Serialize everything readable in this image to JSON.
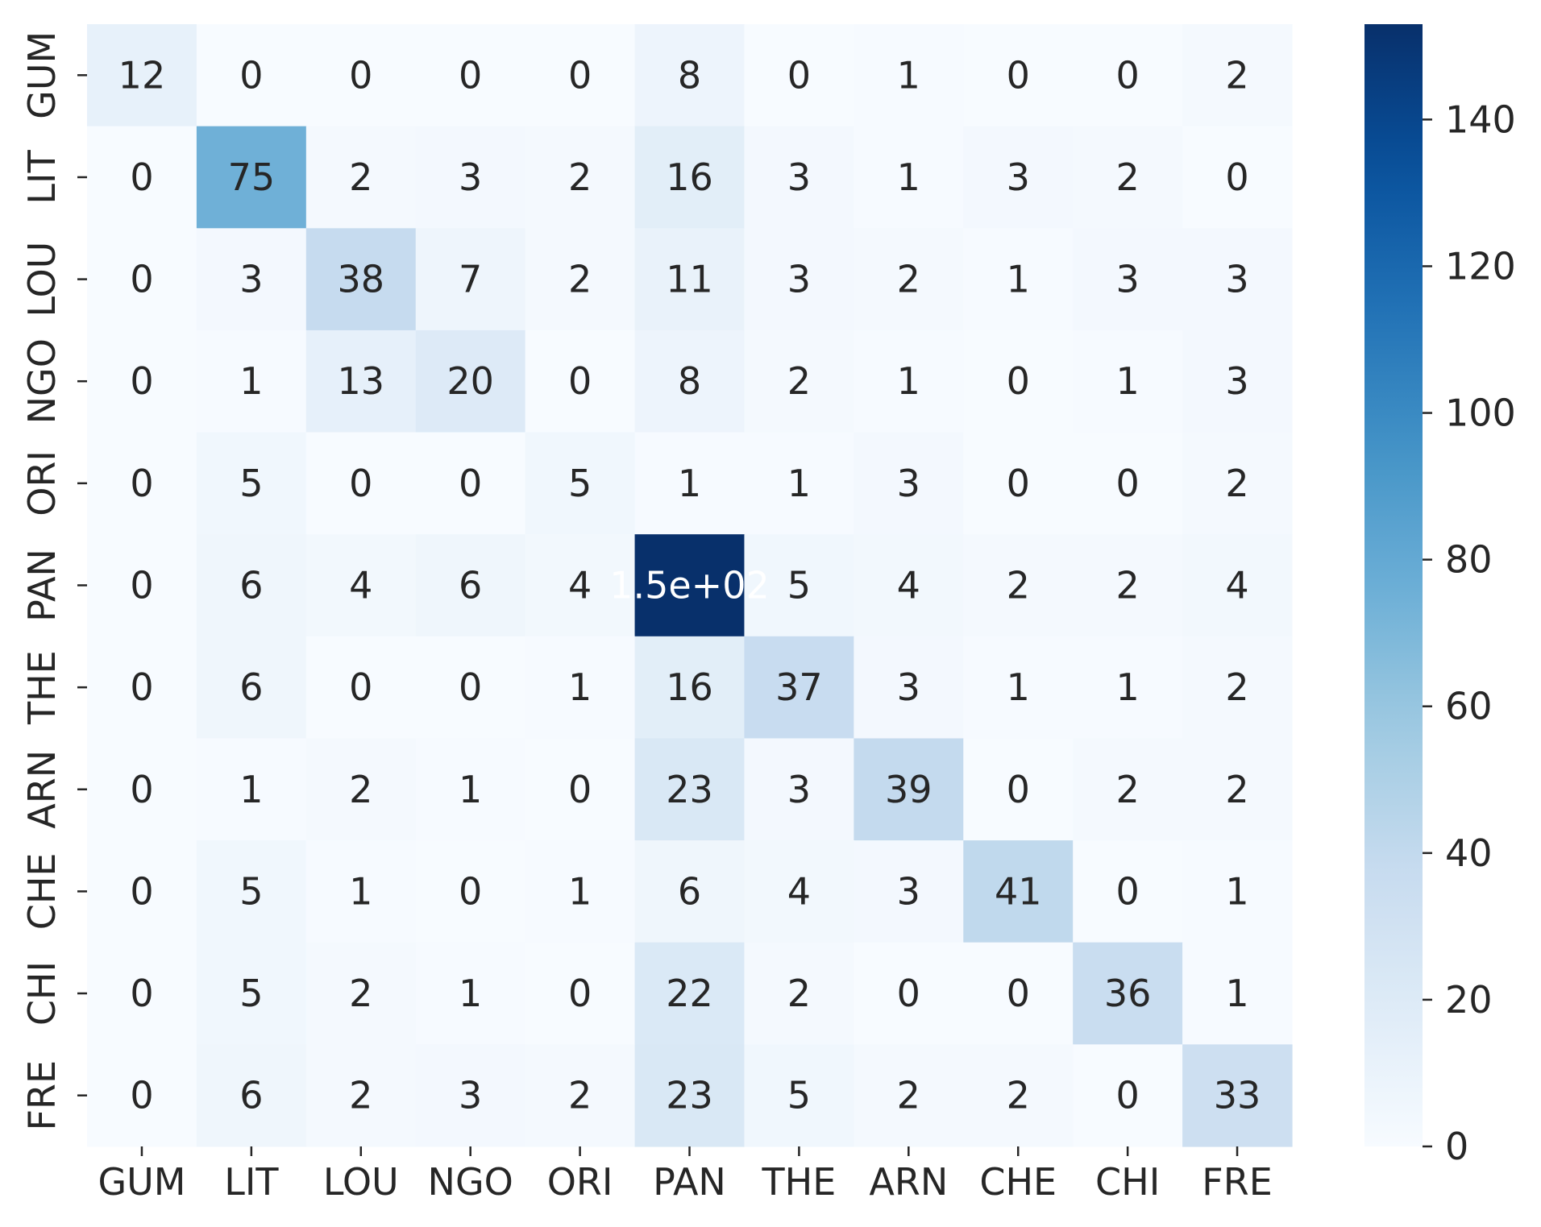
{
  "chart_data": {
    "type": "heatmap",
    "title": "",
    "xlabel": "",
    "ylabel": "",
    "x_categories": [
      "GUM",
      "LIT",
      "LOU",
      "NGO",
      "ORI",
      "PAN",
      "THE",
      "ARN",
      "CHE",
      "CHI",
      "FRE"
    ],
    "y_categories": [
      "GUM",
      "LIT",
      "LOU",
      "NGO",
      "ORI",
      "PAN",
      "THE",
      "ARN",
      "CHE",
      "CHI",
      "FRE"
    ],
    "values": [
      [
        12,
        0,
        0,
        0,
        0,
        8,
        0,
        1,
        0,
        0,
        2
      ],
      [
        0,
        75,
        2,
        3,
        2,
        16,
        3,
        1,
        3,
        2,
        0
      ],
      [
        0,
        3,
        38,
        7,
        2,
        11,
        3,
        2,
        1,
        3,
        3
      ],
      [
        0,
        1,
        13,
        20,
        0,
        8,
        2,
        1,
        0,
        1,
        3
      ],
      [
        0,
        5,
        0,
        0,
        5,
        1,
        1,
        3,
        0,
        0,
        2
      ],
      [
        0,
        6,
        4,
        6,
        4,
        153,
        5,
        4,
        2,
        2,
        4
      ],
      [
        0,
        6,
        0,
        0,
        1,
        16,
        37,
        3,
        1,
        1,
        2
      ],
      [
        0,
        1,
        2,
        1,
        0,
        23,
        3,
        39,
        0,
        2,
        2
      ],
      [
        0,
        5,
        1,
        0,
        1,
        6,
        4,
        3,
        41,
        0,
        1
      ],
      [
        0,
        5,
        2,
        1,
        0,
        22,
        2,
        0,
        0,
        36,
        1
      ],
      [
        0,
        6,
        2,
        3,
        2,
        23,
        5,
        2,
        2,
        0,
        33
      ]
    ],
    "cell_labels": [
      [
        "12",
        "0",
        "0",
        "0",
        "0",
        "8",
        "0",
        "1",
        "0",
        "0",
        "2"
      ],
      [
        "0",
        "75",
        "2",
        "3",
        "2",
        "16",
        "3",
        "1",
        "3",
        "2",
        "0"
      ],
      [
        "0",
        "3",
        "38",
        "7",
        "2",
        "11",
        "3",
        "2",
        "1",
        "3",
        "3"
      ],
      [
        "0",
        "1",
        "13",
        "20",
        "0",
        "8",
        "2",
        "1",
        "0",
        "1",
        "3"
      ],
      [
        "0",
        "5",
        "0",
        "0",
        "5",
        "1",
        "1",
        "3",
        "0",
        "0",
        "2"
      ],
      [
        "0",
        "6",
        "4",
        "6",
        "4",
        "1.5e+02",
        "5",
        "4",
        "2",
        "2",
        "4"
      ],
      [
        "0",
        "6",
        "0",
        "0",
        "1",
        "16",
        "37",
        "3",
        "1",
        "1",
        "2"
      ],
      [
        "0",
        "1",
        "2",
        "1",
        "0",
        "23",
        "3",
        "39",
        "0",
        "2",
        "2"
      ],
      [
        "0",
        "5",
        "1",
        "0",
        "1",
        "6",
        "4",
        "3",
        "41",
        "0",
        "1"
      ],
      [
        "0",
        "5",
        "2",
        "1",
        "0",
        "22",
        "2",
        "0",
        "0",
        "36",
        "1"
      ],
      [
        "0",
        "6",
        "2",
        "3",
        "2",
        "23",
        "5",
        "2",
        "2",
        "0",
        "33"
      ]
    ],
    "colorbar": {
      "min": 0,
      "max": 153,
      "ticks": [
        0,
        20,
        40,
        60,
        80,
        100,
        120,
        140
      ],
      "tick_labels": [
        "0",
        "20",
        "40",
        "60",
        "80",
        "100",
        "120",
        "140"
      ],
      "colormap": "Blues"
    },
    "grid": false,
    "colors": {
      "low": "#f7fbff",
      "high": "#08306b",
      "text_dark": "#262626",
      "text_light": "#ffffff"
    }
  }
}
